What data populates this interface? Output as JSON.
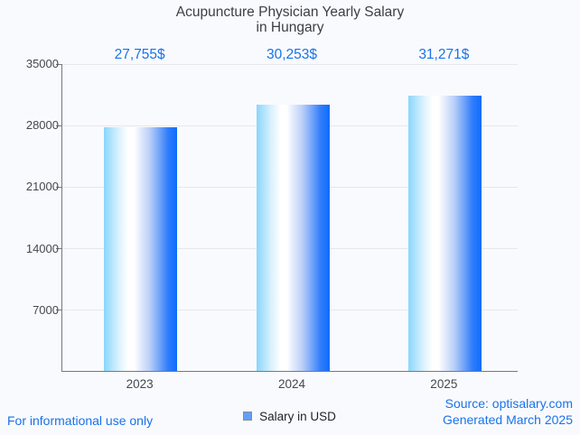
{
  "title": {
    "line1": "Acupuncture Physician Yearly Salary",
    "line2": "in Hungary"
  },
  "chart_data": {
    "type": "bar",
    "title": "Acupuncture Physician Yearly Salary in Hungary",
    "categories": [
      "2023",
      "2024",
      "2025"
    ],
    "series": [
      {
        "name": "Salary in USD",
        "values": [
          27755,
          30253,
          31271
        ]
      }
    ],
    "value_labels": [
      "27,755$",
      "30,253$",
      "31,271$"
    ],
    "xlabel": "",
    "ylabel": "",
    "ylim": [
      0,
      35000
    ],
    "yticks": [
      7000,
      14000,
      21000,
      28000,
      35000
    ],
    "grid": true,
    "legend_position": "bottom"
  },
  "legend": {
    "label": "Salary in USD"
  },
  "footer": {
    "left": "For informational use only",
    "source": "Source: optisalary.com",
    "generated": "Generated March 2025"
  },
  "colors": {
    "background": "#f9fafd",
    "title_text": "#3c4043",
    "axis_text": "#45484b",
    "axis_line": "#75797d",
    "gridline": "#e6e8ec",
    "value_label": "#1a73e8",
    "footer": "#1a73e8",
    "bar_left": "#8ad6fc",
    "bar_mid": "#ffffff",
    "bar_right": "#0d6dfc",
    "legend_marker": "#62a0f5",
    "legend_marker_border": "#878d94"
  }
}
